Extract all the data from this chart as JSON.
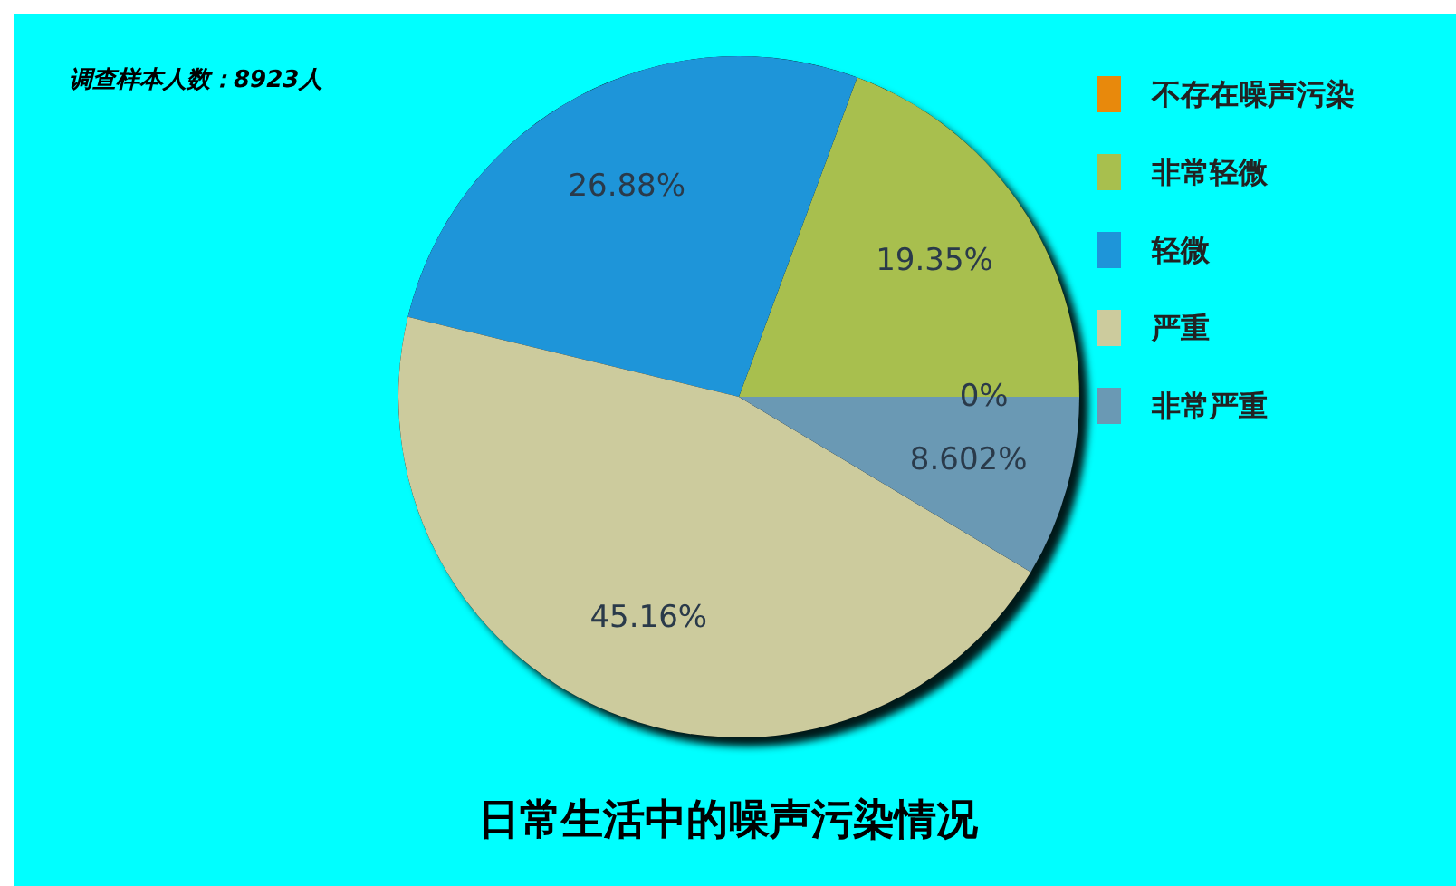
{
  "chart_data": {
    "type": "pie",
    "title": "日常生活中的噪声污染情况",
    "annotations": [
      "调查样本人数：8923人"
    ],
    "categories": [
      "不存在噪声污染",
      "非常轻微",
      "轻微",
      "严重",
      "非常严重"
    ],
    "values": [
      0,
      19.35,
      26.88,
      45.16,
      8.602
    ],
    "value_labels": [
      "0%",
      "19.35%",
      "26.88%",
      "45.16%",
      "8.602%"
    ],
    "colors": [
      "#e8890c",
      "#a8bf4e",
      "#1e95d9",
      "#cccb9d",
      "#6a99b4"
    ],
    "legend": "top right"
  }
}
